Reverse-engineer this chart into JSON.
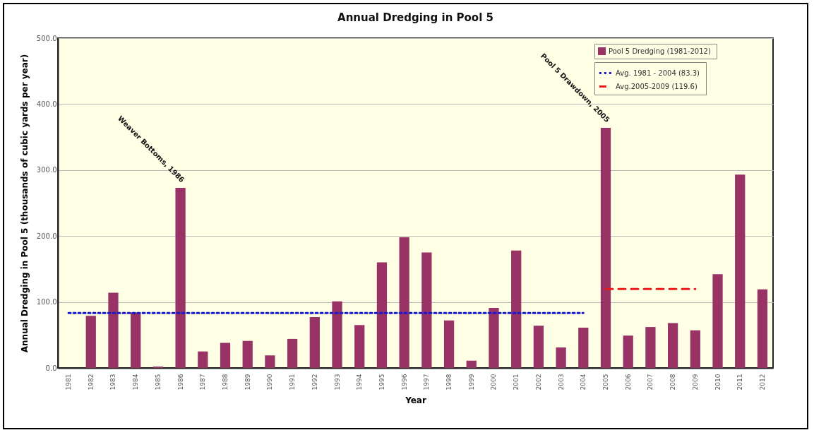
{
  "chart_data": {
    "type": "bar",
    "title": "Annual Dredging in Pool 5",
    "xlabel": "Year",
    "ylabel": "Annual Dredging in Pool 5  (thousands of cubic yards per year)",
    "categories": [
      "1981",
      "1982",
      "1983",
      "1984",
      "1985",
      "1986",
      "1987",
      "1988",
      "1989",
      "1990",
      "1991",
      "1992",
      "1993",
      "1994",
      "1995",
      "1996",
      "1997",
      "1998",
      "1999",
      "2000",
      "2001",
      "2002",
      "2003",
      "2004",
      "2005",
      "2006",
      "2007",
      "2008",
      "2009",
      "2010",
      "2011",
      "2012"
    ],
    "series": [
      {
        "name": "Pool 5 Dredging  (1981-2012)",
        "color": "#993366",
        "values": [
          0,
          79,
          114,
          84,
          2,
          273,
          25,
          38,
          41,
          19,
          44,
          77,
          101,
          65,
          160,
          198,
          175,
          72,
          11,
          91,
          178,
          64,
          31,
          61,
          364,
          49,
          62,
          68,
          57,
          142,
          293,
          119
        ]
      },
      {
        "name": "Avg. 1981 - 2004  (83.3)",
        "type": "line",
        "line_style": "dotted",
        "color": "#1a1acc",
        "values": [
          83.3,
          83.3,
          83.3,
          83.3,
          83.3,
          83.3,
          83.3,
          83.3,
          83.3,
          83.3,
          83.3,
          83.3,
          83.3,
          83.3,
          83.3,
          83.3,
          83.3,
          83.3,
          83.3,
          83.3,
          83.3,
          83.3,
          83.3,
          83.3,
          null,
          null,
          null,
          null,
          null,
          null,
          null,
          null
        ]
      },
      {
        "name": "Avg.2005-2009  (119.6)",
        "type": "line",
        "line_style": "dashed",
        "color": "#e81c1c",
        "values": [
          null,
          null,
          null,
          null,
          null,
          null,
          null,
          null,
          null,
          null,
          null,
          null,
          null,
          null,
          null,
          null,
          null,
          null,
          null,
          null,
          null,
          null,
          null,
          null,
          119.6,
          119.6,
          119.6,
          119.6,
          119.6,
          null,
          null,
          null
        ]
      }
    ],
    "ylim": [
      0,
      500
    ],
    "yticks": [
      {
        "value": 0,
        "label": "0.0"
      },
      {
        "value": 100,
        "label": "100.0"
      },
      {
        "value": 200,
        "label": "200.0"
      },
      {
        "value": 300,
        "label": "300.0"
      },
      {
        "value": 400,
        "label": "400.0"
      },
      {
        "value": 500,
        "label": "500.0"
      }
    ],
    "grid": "y",
    "legend": "top right",
    "annotations": [
      {
        "text": "Weaver Bottoms, 1986",
        "x": "1986",
        "y": 273
      },
      {
        "text": "Pool 5 Drawdown, 2005",
        "x": "2005",
        "y": 364
      }
    ]
  }
}
